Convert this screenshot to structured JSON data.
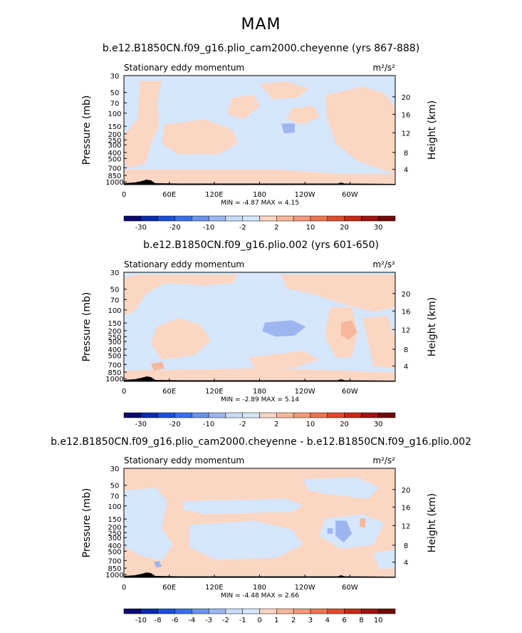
{
  "figure": {
    "season": "MAM"
  },
  "colors": {
    "scale": [
      "#0a0a6e",
      "#0b2ca8",
      "#1a50d8",
      "#3870e8",
      "#6b93ea",
      "#9db6f0",
      "#cbdcf8",
      "#d6e6fb",
      "#fbd6c3",
      "#f6b89b",
      "#f29a7a",
      "#ec7552",
      "#dd4c2c",
      "#c32a14",
      "#9c1410",
      "#6e0a08"
    ],
    "positive": "#fbd6c3",
    "negative": "#d6e6fb",
    "neg2": "#9db6f0",
    "pos2": "#f6b89b",
    "topography": "#000000"
  },
  "chart_data": [
    {
      "type": "heatmap",
      "title": "b.e12.B1850CN.f09_g16.plio_cam2000.cheyenne (yrs 867-888)",
      "left_string": "Stationary eddy momentum",
      "units": "m²/s²",
      "ylabel": "Pressure (mb)",
      "ylabel_right": "Height (km)",
      "x_ticks": [
        "0",
        "60E",
        "120E",
        "180",
        "120W",
        "60W"
      ],
      "y_ticks": [
        "30",
        "50",
        "70",
        "100",
        "150",
        "200",
        "250",
        "300",
        "400",
        "500",
        "700",
        "850",
        "1000"
      ],
      "right_ticks": [
        "20",
        "16",
        "12",
        "8",
        "4"
      ],
      "stats": {
        "min_label": "MIN =",
        "min": "-4.87",
        "max_label": "MAX =",
        "max": "4.15"
      },
      "colorbar_labels": [
        "-30",
        "-20",
        "-10",
        "-2",
        "2",
        "10",
        "20",
        "30"
      ],
      "colorbar_levels": [
        -30,
        -25,
        -20,
        -15,
        -10,
        -5,
        -2,
        0,
        2,
        5,
        10,
        15,
        20,
        25,
        30
      ]
    },
    {
      "type": "heatmap",
      "title": "b.e12.B1850CN.f09_g16.plio.002 (yrs 601-650)",
      "left_string": "Stationary eddy momentum",
      "units": "m²/s²",
      "ylabel": "Pressure (mb)",
      "ylabel_right": "Height (km)",
      "x_ticks": [
        "0",
        "60E",
        "120E",
        "180",
        "120W",
        "60W"
      ],
      "y_ticks": [
        "30",
        "50",
        "70",
        "100",
        "150",
        "200",
        "250",
        "300",
        "400",
        "500",
        "700",
        "850",
        "1000"
      ],
      "right_ticks": [
        "20",
        "16",
        "12",
        "8",
        "4"
      ],
      "stats": {
        "min_label": "MIN =",
        "min": "-2.89",
        "max_label": "MAX =",
        "max": "5.14"
      },
      "colorbar_labels": [
        "-30",
        "-20",
        "-10",
        "-2",
        "2",
        "10",
        "20",
        "30"
      ],
      "colorbar_levels": [
        -30,
        -25,
        -20,
        -15,
        -10,
        -5,
        -2,
        0,
        2,
        5,
        10,
        15,
        20,
        25,
        30
      ]
    },
    {
      "type": "heatmap",
      "title": "b.e12.B1850CN.f09_g16.plio_cam2000.cheyenne - b.e12.B1850CN.f09_g16.plio.002",
      "left_string": "Stationary eddy momentum",
      "units": "m²/s²",
      "ylabel": "Pressure (mb)",
      "ylabel_right": "Height (km)",
      "x_ticks": [
        "0",
        "60E",
        "120E",
        "180",
        "120W",
        "60W"
      ],
      "y_ticks": [
        "30",
        "50",
        "70",
        "100",
        "150",
        "200",
        "250",
        "300",
        "400",
        "500",
        "700",
        "850",
        "1000"
      ],
      "right_ticks": [
        "20",
        "16",
        "12",
        "8",
        "4"
      ],
      "stats": {
        "min_label": "MIN =",
        "min": "-4.48",
        "max_label": "MAX =",
        "max": "2.66"
      },
      "colorbar_labels": [
        "-10",
        "-8",
        "-6",
        "-4",
        "-3",
        "-2",
        "-1",
        "0",
        "1",
        "2",
        "3",
        "4",
        "6",
        "8",
        "10"
      ],
      "colorbar_levels": [
        -10,
        -8,
        -6,
        -4,
        -3,
        -2,
        -1,
        0,
        1,
        2,
        3,
        4,
        6,
        8,
        10
      ]
    }
  ]
}
